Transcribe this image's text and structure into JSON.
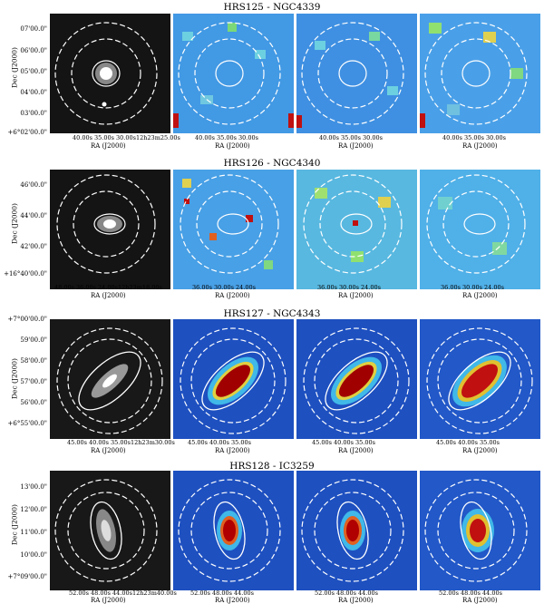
{
  "figure": {
    "rows": [
      {
        "title": "HRS125 - NGC4339",
        "ylabel": "Dec (J2000)",
        "yticks": [
          "07'00.0\"",
          "06'00.0\"",
          "05'00.0\"",
          "04'00.0\"",
          "03'00.0\"",
          "+6°02'00.0\""
        ],
        "xticks_first": "40.00s    35.00s   30.00s12h23m25.00s",
        "xticks_other": "40.00s    35.00s    30.00s",
        "xlabel": "RA (J2000)"
      },
      {
        "title": "HRS126 - NGC4340",
        "ylabel": "Dec (J2000)",
        "yticks": [
          "46'00.0\"",
          "44'00.0\"",
          "42'00.0\"",
          "+16°40'00.0\""
        ],
        "xticks_first": "48.00s    36.00s  24.00s12h23m18.00s",
        "xticks_other": "36.00s   30.00s   24.00s",
        "xlabel": "RA (J2000)"
      },
      {
        "title": "HRS127 - NGC4343",
        "ylabel": "Dec (J2000)",
        "yticks": [
          "+7°00'00.0\"",
          "59'00.0\"",
          "58'00.0\"",
          "57'00.0\"",
          "56'00.0\"",
          "+6°55'00.0\""
        ],
        "xticks_first": "45.00s   40.00s   35.00s12h23m30.00s",
        "xticks_other": "45.00s   40.00s   35.00s",
        "xlabel": "RA (J2000)"
      },
      {
        "title": "HRS128 - IC3259",
        "ylabel": "Dec (J2000)",
        "yticks": [
          "13'00.0\"",
          "12'00.0\"",
          "11'00.0\"",
          "10'00.0\"",
          "+7°09'00.0\""
        ],
        "xticks_first": "52.00s   48.00s   44.00s12h23m40.00s",
        "xticks_other": "52.00s   48.00s   44.00s",
        "xlabel": "RA (J2000)"
      }
    ]
  }
}
